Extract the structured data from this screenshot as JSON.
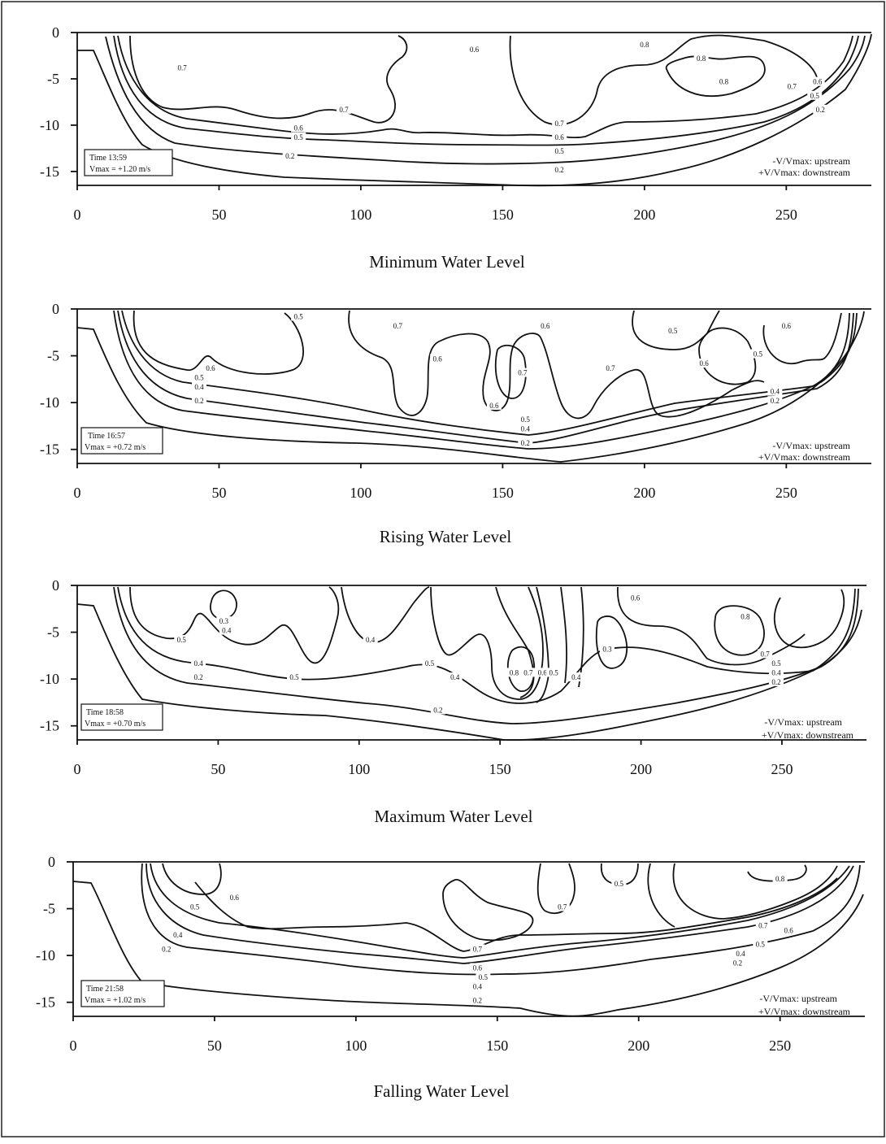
{
  "figure": {
    "note_upstream": "-V/Vmax: upstream",
    "note_downstream": "+V/Vmax: downstream",
    "x_ticks": [
      "0",
      "50",
      "100",
      "150",
      "200",
      "250"
    ],
    "y_ticks": [
      "0",
      "-5",
      "-10",
      "-15"
    ]
  },
  "chart_data": [
    {
      "type": "contour",
      "title": "Minimum Water Level",
      "time_label": "Time 13:59",
      "vmax_label": "Vmax = +1.20 m/s",
      "xlim": [
        0,
        280
      ],
      "ylim": [
        -16.5,
        0
      ],
      "contour_levels": [
        "0.2",
        "0.5",
        "0.6",
        "0.7",
        "0.8"
      ],
      "labels": [
        {
          "text": "0.7",
          "x": 37,
          "y": -4
        },
        {
          "text": "0.6",
          "x": 140,
          "y": -2
        },
        {
          "text": "0.8",
          "x": 200,
          "y": -1.5
        },
        {
          "text": "0.8",
          "x": 220,
          "y": -3
        },
        {
          "text": "0.8",
          "x": 228,
          "y": -5.5
        },
        {
          "text": "0.7",
          "x": 252,
          "y": -6
        },
        {
          "text": "0.6",
          "x": 261,
          "y": -5.5
        },
        {
          "text": "0.5",
          "x": 260,
          "y": -7
        },
        {
          "text": "0.2",
          "x": 262,
          "y": -8.5
        },
        {
          "text": "0.7",
          "x": 94,
          "y": -8.5
        },
        {
          "text": "0.6",
          "x": 78,
          "y": -10.5
        },
        {
          "text": "0.5",
          "x": 78,
          "y": -11.5
        },
        {
          "text": "0.2",
          "x": 75,
          "y": -13.5
        },
        {
          "text": "0.7",
          "x": 170,
          "y": -10
        },
        {
          "text": "0.6",
          "x": 170,
          "y": -11.5
        },
        {
          "text": "0.5",
          "x": 170,
          "y": -13
        },
        {
          "text": "0.2",
          "x": 170,
          "y": -15
        }
      ]
    },
    {
      "type": "contour",
      "title": "Rising Water Level",
      "time_label": "Time 16:57",
      "vmax_label": "Vmax = +0.72 m/s",
      "xlim": [
        0,
        280
      ],
      "ylim": [
        -16.5,
        0
      ],
      "contour_levels": [
        "0.2",
        "0.4",
        "0.5",
        "0.6",
        "0.7"
      ],
      "labels": [
        {
          "text": "0.5",
          "x": 78,
          "y": -1
        },
        {
          "text": "0.7",
          "x": 113,
          "y": -2
        },
        {
          "text": "0.6",
          "x": 165,
          "y": -2
        },
        {
          "text": "0.5",
          "x": 210,
          "y": -2.5
        },
        {
          "text": "0.6",
          "x": 250,
          "y": -2
        },
        {
          "text": "0.6",
          "x": 47,
          "y": -6.5
        },
        {
          "text": "0.6",
          "x": 127,
          "y": -5.5
        },
        {
          "text": "0.7",
          "x": 157,
          "y": -7
        },
        {
          "text": "0.7",
          "x": 188,
          "y": -6.5
        },
        {
          "text": "0.6",
          "x": 221,
          "y": -6
        },
        {
          "text": "0.5",
          "x": 240,
          "y": -5
        },
        {
          "text": "0.5",
          "x": 43,
          "y": -7.5
        },
        {
          "text": "0.4",
          "x": 43,
          "y": -8.5
        },
        {
          "text": "0.2",
          "x": 43,
          "y": -10
        },
        {
          "text": "0.6",
          "x": 147,
          "y": -10.5
        },
        {
          "text": "0.5",
          "x": 158,
          "y": -12
        },
        {
          "text": "0.4",
          "x": 158,
          "y": -13
        },
        {
          "text": "0.2",
          "x": 158,
          "y": -14.5
        },
        {
          "text": "0.4",
          "x": 246,
          "y": -9
        },
        {
          "text": "0.2",
          "x": 246,
          "y": -10
        }
      ]
    },
    {
      "type": "contour",
      "title": "Maximum Water Level",
      "time_label": "Time 18:58",
      "vmax_label": "Vmax = +0.70 m/s",
      "xlim": [
        0,
        280
      ],
      "ylim": [
        -16.5,
        0
      ],
      "contour_levels": [
        "0.2",
        "0.3",
        "0.4",
        "0.5",
        "0.6",
        "0.7",
        "0.8"
      ],
      "labels": [
        {
          "text": "0.3",
          "x": 52,
          "y": -4
        },
        {
          "text": "0.4",
          "x": 53,
          "y": -5
        },
        {
          "text": "0.6",
          "x": 198,
          "y": -1.5
        },
        {
          "text": "0.8",
          "x": 237,
          "y": -3.5
        },
        {
          "text": "0.5",
          "x": 37,
          "y": -6
        },
        {
          "text": "0.4",
          "x": 104,
          "y": -6
        },
        {
          "text": "0.3",
          "x": 188,
          "y": -7
        },
        {
          "text": "0.5",
          "x": 125,
          "y": -8.5
        },
        {
          "text": "0.7",
          "x": 244,
          "y": -7.5
        },
        {
          "text": "0.5",
          "x": 248,
          "y": -8.5
        },
        {
          "text": "0.4",
          "x": 248,
          "y": -9.5
        },
        {
          "text": "0.2",
          "x": 248,
          "y": -10.5
        },
        {
          "text": "0.4",
          "x": 43,
          "y": -8.5
        },
        {
          "text": "0.2",
          "x": 43,
          "y": -10
        },
        {
          "text": "0.5",
          "x": 77,
          "y": -10
        },
        {
          "text": "0.4",
          "x": 134,
          "y": -10
        },
        {
          "text": "0.8",
          "x": 155,
          "y": -9.5
        },
        {
          "text": "0.7",
          "x": 160,
          "y": -9.5
        },
        {
          "text": "0.6",
          "x": 165,
          "y": -9.5
        },
        {
          "text": "0.5",
          "x": 169,
          "y": -9.5
        },
        {
          "text": "0.4",
          "x": 177,
          "y": -10
        },
        {
          "text": "0.2",
          "x": 128,
          "y": -13.5
        }
      ]
    },
    {
      "type": "contour",
      "title": "Falling Water Level",
      "time_label": "Time 21:58",
      "vmax_label": "Vmax = +1.02 m/s",
      "xlim": [
        0,
        280
      ],
      "ylim": [
        -16.5,
        0
      ],
      "contour_levels": [
        "0.2",
        "0.4",
        "0.5",
        "0.6",
        "0.7",
        "0.8"
      ],
      "labels": [
        {
          "text": "0.6",
          "x": 57,
          "y": -4
        },
        {
          "text": "0.5",
          "x": 43,
          "y": -5
        },
        {
          "text": "0.7",
          "x": 173,
          "y": -5
        },
        {
          "text": "0.5",
          "x": 193,
          "y": -2.5
        },
        {
          "text": "0.8",
          "x": 250,
          "y": -2
        },
        {
          "text": "0.4",
          "x": 37,
          "y": -8
        },
        {
          "text": "0.2",
          "x": 33,
          "y": -9.5
        },
        {
          "text": "0.7",
          "x": 143,
          "y": -9.5
        },
        {
          "text": "0.6",
          "x": 143,
          "y": -11.5
        },
        {
          "text": "0.5",
          "x": 145,
          "y": -12.5
        },
        {
          "text": "0.4",
          "x": 143,
          "y": -13.5
        },
        {
          "text": "0.2",
          "x": 143,
          "y": -15
        },
        {
          "text": "0.7",
          "x": 244,
          "y": -7
        },
        {
          "text": "0.6",
          "x": 253,
          "y": -7.5
        },
        {
          "text": "0.5",
          "x": 243,
          "y": -9
        },
        {
          "text": "0.4",
          "x": 236,
          "y": -10
        },
        {
          "text": "0.2",
          "x": 235,
          "y": -11
        }
      ]
    }
  ]
}
